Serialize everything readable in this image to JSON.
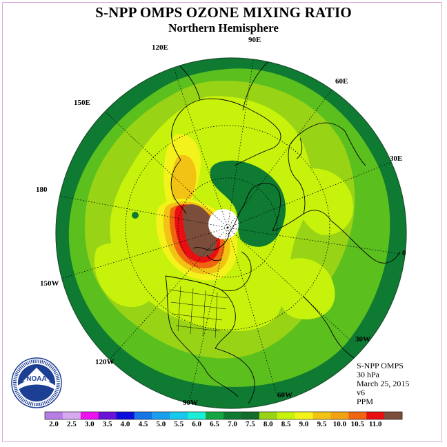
{
  "header": {
    "title": "S-NPP OMPS OZONE MIXING RATIO",
    "subtitle": "Northern Hemisphere"
  },
  "map": {
    "projection": "polar-stereographic-north",
    "longitude_labels": [
      "90E",
      "60E",
      "30E",
      "0",
      "30W",
      "60W",
      "90W",
      "120W",
      "150W",
      "180",
      "150E",
      "120E"
    ],
    "no_data_region": "north-pole-circle"
  },
  "info": {
    "instrument": "S-NPP OMPS",
    "level": "30 hPa",
    "date": "March 25, 2015",
    "version": "v6",
    "units": "PPM"
  },
  "colorbar": {
    "labels": [
      "2.0",
      "2.5",
      "3.0",
      "3.5",
      "4.0",
      "4.5",
      "5.0",
      "5.5",
      "6.0",
      "6.5",
      "7.0",
      "7.5",
      "8.0",
      "8.5",
      "9.0",
      "9.5",
      "10.0",
      "10.5",
      "11.0"
    ],
    "colors": [
      "#b77fe6",
      "#d5a8ef",
      "#ee13ee",
      "#6a12d6",
      "#0d0ddb",
      "#1674e6",
      "#1a9fee",
      "#18c8ee",
      "#19eed6",
      "#13a642",
      "#0e7a32",
      "#136b2c",
      "#98d316",
      "#c7f20b",
      "#f3f31b",
      "#f2c314",
      "#f1a313",
      "#ef6512",
      "#e80e12",
      "#7a4e3a"
    ]
  },
  "logo": {
    "name": "NOAA",
    "ring_text": "NATIONAL OCEANIC AND ATMOSPHERIC ADMINISTRATION · U.S. DEPARTMENT OF COMMERCE"
  }
}
